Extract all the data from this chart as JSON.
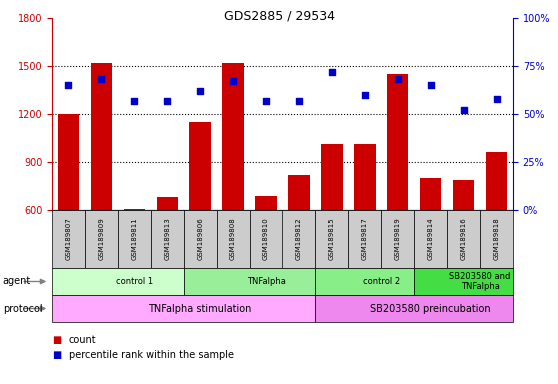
{
  "title": "GDS2885 / 29534",
  "samples": [
    "GSM189807",
    "GSM189809",
    "GSM189811",
    "GSM189813",
    "GSM189806",
    "GSM189808",
    "GSM189810",
    "GSM189812",
    "GSM189815",
    "GSM189817",
    "GSM189819",
    "GSM189814",
    "GSM189816",
    "GSM189818"
  ],
  "counts": [
    1200,
    1520,
    605,
    680,
    1150,
    1520,
    690,
    820,
    1010,
    1010,
    1450,
    800,
    790,
    960
  ],
  "percentiles": [
    65,
    68,
    57,
    57,
    62,
    67,
    57,
    57,
    72,
    60,
    68,
    65,
    52,
    58
  ],
  "ylim_left": [
    600,
    1800
  ],
  "ylim_right": [
    0,
    100
  ],
  "yticks_left": [
    600,
    900,
    1200,
    1500,
    1800
  ],
  "yticks_right": [
    0,
    25,
    50,
    75,
    100
  ],
  "agent_groups": [
    {
      "label": "control 1",
      "start": 0,
      "end": 4,
      "color": "#ccffcc"
    },
    {
      "label": "TNFalpha",
      "start": 4,
      "end": 8,
      "color": "#99ee99"
    },
    {
      "label": "control 2",
      "start": 8,
      "end": 11,
      "color": "#88ee88"
    },
    {
      "label": "SB203580 and\nTNFalpha",
      "start": 11,
      "end": 14,
      "color": "#44dd44"
    }
  ],
  "protocol_groups": [
    {
      "label": "TNFalpha stimulation",
      "start": 0,
      "end": 8,
      "color": "#ffaaff"
    },
    {
      "label": "SB203580 preincubation",
      "start": 8,
      "end": 14,
      "color": "#ee88ee"
    }
  ],
  "bar_color": "#cc0000",
  "dot_color": "#0000cc",
  "grid_color": "#000000",
  "sample_box_color": "#cccccc",
  "background_color": "#ffffff",
  "left_tick_color": "#cc0000",
  "right_tick_color": "#0000cc"
}
